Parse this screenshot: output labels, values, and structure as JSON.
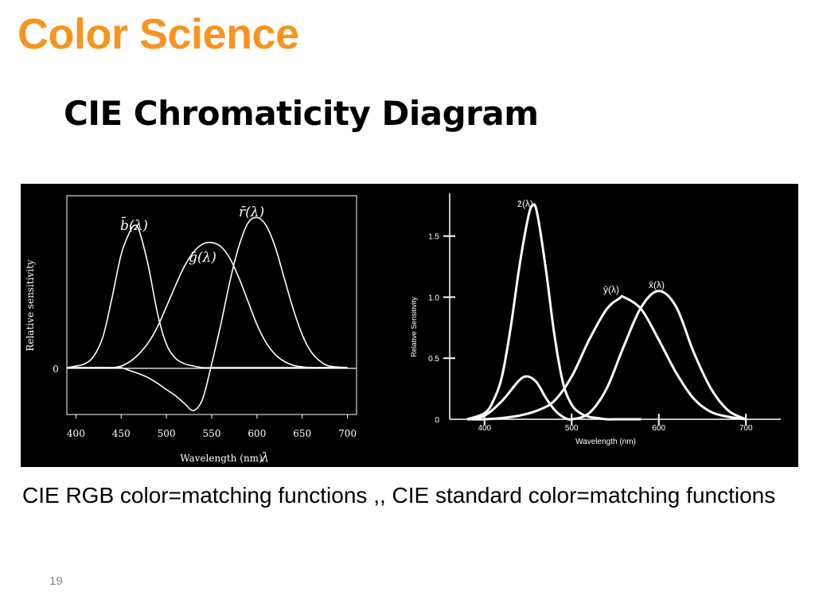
{
  "slide": {
    "header": "Color Science",
    "title": "CIE Chromaticity Diagram",
    "caption": "CIE  RGB color=matching functions ,,  CIE  standard color=matching functions",
    "page_number": "19"
  },
  "colors": {
    "header": "#F7941D",
    "panel_background": "#000000",
    "curve": "#ffffff",
    "text": "#000000"
  },
  "chart_data": [
    {
      "type": "line",
      "title": "",
      "xlabel": "Wavelength (nm)",
      "xlabel_symbol": "λ",
      "ylabel": "Relative sensitivity",
      "x_ticks": [
        "400",
        "450",
        "500",
        "550",
        "600",
        "650",
        "700"
      ],
      "y_ticks": [
        "0"
      ],
      "xlim": [
        390,
        710
      ],
      "ylim": [
        -0.6,
        2.2
      ],
      "grid": false,
      "series": [
        {
          "name": "b̄(λ)",
          "x": [
            380,
            400,
            410,
            420,
            430,
            440,
            450,
            460,
            465,
            470,
            480,
            490,
            500,
            510,
            520,
            530,
            540,
            550,
            560,
            570,
            580,
            590,
            600,
            610,
            620,
            630,
            640,
            650,
            660,
            670,
            680,
            700
          ],
          "y": [
            0,
            0.02,
            0.05,
            0.15,
            0.4,
            0.9,
            1.45,
            1.75,
            1.82,
            1.75,
            1.3,
            0.7,
            0.3,
            0.12,
            0.05,
            0.02,
            0,
            0,
            0,
            0,
            0,
            0,
            0,
            0,
            0,
            0,
            0,
            0,
            0,
            0,
            0,
            0
          ]
        },
        {
          "name": "ḡ(λ)",
          "x": [
            380,
            400,
            410,
            420,
            430,
            440,
            450,
            460,
            470,
            480,
            490,
            500,
            510,
            520,
            530,
            540,
            550,
            560,
            570,
            580,
            590,
            600,
            610,
            620,
            630,
            640,
            650,
            660,
            670,
            680,
            700
          ],
          "y": [
            0,
            0,
            0,
            0,
            0,
            0,
            0.02,
            0.08,
            0.18,
            0.32,
            0.52,
            0.78,
            1.05,
            1.3,
            1.48,
            1.58,
            1.6,
            1.55,
            1.4,
            1.15,
            0.85,
            0.55,
            0.32,
            0.17,
            0.08,
            0.03,
            0.01,
            0,
            0,
            0,
            0
          ]
        },
        {
          "name": "r̄(λ)",
          "x": [
            380,
            400,
            410,
            420,
            430,
            440,
            450,
            460,
            470,
            480,
            490,
            500,
            510,
            520,
            530,
            540,
            550,
            560,
            570,
            580,
            590,
            600,
            610,
            620,
            630,
            640,
            650,
            660,
            670,
            680,
            700
          ],
          "y": [
            0,
            0,
            0,
            0,
            0,
            0,
            0,
            -0.04,
            -0.08,
            -0.13,
            -0.2,
            -0.28,
            -0.36,
            -0.46,
            -0.55,
            -0.4,
            0.05,
            0.55,
            1.1,
            1.55,
            1.85,
            1.92,
            1.82,
            1.55,
            1.15,
            0.75,
            0.42,
            0.2,
            0.08,
            0.02,
            0
          ]
        }
      ],
      "curve_labels": [
        "b̄(λ)",
        "ḡ(λ)",
        "r̄(λ)"
      ]
    },
    {
      "type": "line",
      "title": "",
      "xlabel": "Wavelength (nm)",
      "ylabel": "Relative Sensitivity",
      "x_ticks": [
        "400",
        "500",
        "600",
        "700"
      ],
      "y_ticks": [
        "0",
        "0.5",
        "1.0",
        "1.5"
      ],
      "xlim": [
        360,
        740
      ],
      "ylim": [
        0,
        1.85
      ],
      "grid": false,
      "series": [
        {
          "name": "z̄(λ)",
          "x": [
            380,
            400,
            410,
            420,
            430,
            440,
            450,
            455,
            460,
            470,
            480,
            490,
            500,
            510,
            520,
            530,
            540,
            550,
            580
          ],
          "y": [
            0,
            0.05,
            0.15,
            0.35,
            0.75,
            1.25,
            1.65,
            1.75,
            1.7,
            1.25,
            0.7,
            0.3,
            0.12,
            0.05,
            0.02,
            0.01,
            0,
            0,
            0
          ]
        },
        {
          "name": "x̄(λ)",
          "x": [
            380,
            400,
            420,
            440,
            450,
            460,
            470,
            480,
            490,
            500,
            520,
            540,
            560,
            580,
            600,
            620,
            640,
            660,
            680,
            700
          ],
          "y": [
            0,
            0.03,
            0.15,
            0.32,
            0.35,
            0.3,
            0.18,
            0.08,
            0.02,
            0,
            0.05,
            0.25,
            0.6,
            0.92,
            1.05,
            0.92,
            0.55,
            0.25,
            0.07,
            0
          ]
        },
        {
          "name": "ȳ(λ)",
          "x": [
            380,
            400,
            420,
            440,
            460,
            480,
            500,
            520,
            540,
            555,
            560,
            580,
            600,
            620,
            640,
            660,
            680,
            700
          ],
          "y": [
            0,
            0,
            0.01,
            0.03,
            0.07,
            0.15,
            0.35,
            0.65,
            0.9,
            0.99,
            1.0,
            0.9,
            0.65,
            0.38,
            0.17,
            0.06,
            0.02,
            0
          ]
        }
      ],
      "curve_labels": [
        "z̄(λ)",
        "ȳ(λ)",
        "x̄(λ)"
      ]
    }
  ]
}
